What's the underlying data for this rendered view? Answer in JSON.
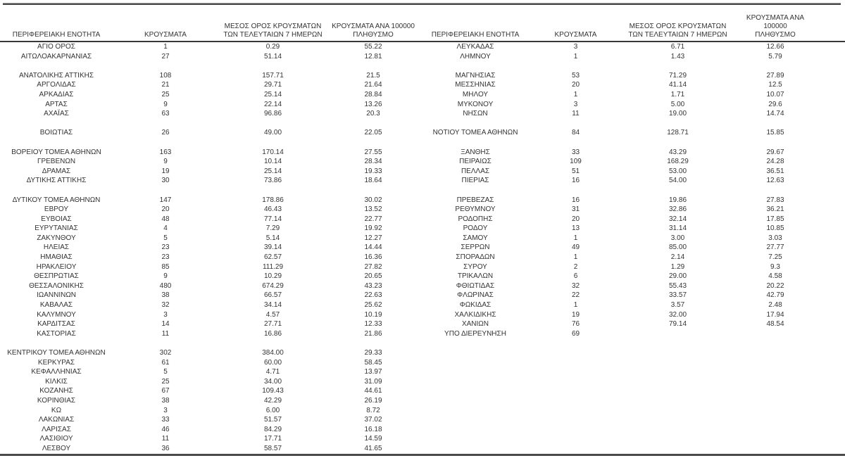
{
  "page": {
    "background": "#ffffff",
    "text_color": "#333333",
    "rule_color": "#4a4a4a"
  },
  "table": {
    "headers": {
      "region": "ΠΕΡΙΦΕΡΕΙΑΚΗ ΕΝΟΤΗΤΑ",
      "cases": "ΚΡΟΥΣΜΑΤΑ",
      "avg7": "ΜΕΣΟΣ ΟΡΟΣ ΚΡΟΥΣΜΑΤΩΝ\nΤΩΝ ΤΕΛΕΥΤΑΙΩΝ 7 ΗΜΕΡΩΝ",
      "per100k": "ΚΡΟΥΣΜΑΤΑ ΑΝΑ 100000\nΠΛΗΘΥΣΜΟ"
    },
    "rows": [
      [
        "ΑΓΙΟ ΟΡΟΣ",
        "1",
        "0.29",
        "55.22",
        "ΛΕΥΚΑΔΑΣ",
        "3",
        "6.71",
        "12.66"
      ],
      [
        "ΑΙΤΩΛΟΑΚΑΡΝΑΝΙΑΣ",
        "27",
        "51.14",
        "12.81",
        "ΛΗΜΝΟΥ",
        "1",
        "1.43",
        "5.79"
      ],
      [
        "",
        "",
        "",
        "",
        "",
        "",
        "",
        ""
      ],
      [
        "ΑΝΑΤΟΛΙΚΗΣ ΑΤΤΙΚΗΣ",
        "108",
        "157.71",
        "21.5",
        "ΜΑΓΝΗΣΙΑΣ",
        "53",
        "71.29",
        "27.89"
      ],
      [
        "ΑΡΓΟΛΙΔΑΣ",
        "21",
        "29.71",
        "21.64",
        "ΜΕΣΣΗΝΙΑΣ",
        "20",
        "41.14",
        "12.5"
      ],
      [
        "ΑΡΚΑΔΙΑΣ",
        "25",
        "25.14",
        "28.84",
        "ΜΗΛΟΥ",
        "1",
        "1.71",
        "10.07"
      ],
      [
        "ΑΡΤΑΣ",
        "9",
        "22.14",
        "13.26",
        "ΜΥΚΟΝΟΥ",
        "3",
        "5.00",
        "29.6"
      ],
      [
        "ΑΧΑΪΑΣ",
        "63",
        "96.86",
        "20.3",
        "ΝΗΣΩΝ",
        "11",
        "19.00",
        "14.74"
      ],
      [
        "",
        "",
        "",
        "",
        "",
        "",
        "",
        ""
      ],
      [
        "ΒΟΙΩΤΙΑΣ",
        "26",
        "49.00",
        "22.05",
        "ΝΟΤΙΟΥ ΤΟΜΕΑ ΑΘΗΝΩΝ",
        "84",
        "128.71",
        "15.85"
      ],
      [
        "",
        "",
        "",
        "",
        "",
        "",
        "",
        ""
      ],
      [
        "ΒΟΡΕΙΟΥ ΤΟΜΕΑ ΑΘΗΝΩΝ",
        "163",
        "170.14",
        "27.55",
        "ΞΑΝΘΗΣ",
        "33",
        "43.29",
        "29.67"
      ],
      [
        "ΓΡΕΒΕΝΩΝ",
        "9",
        "10.14",
        "28.34",
        "ΠΕΙΡΑΙΩΣ",
        "109",
        "168.29",
        "24.28"
      ],
      [
        "ΔΡΑΜΑΣ",
        "19",
        "25.14",
        "19.33",
        "ΠΕΛΛΑΣ",
        "51",
        "53.00",
        "36.51"
      ],
      [
        "ΔΥΤΙΚΗΣ ΑΤΤΙΚΗΣ",
        "30",
        "73.86",
        "18.64",
        "ΠΙΕΡΙΑΣ",
        "16",
        "54.00",
        "12.63"
      ],
      [
        "",
        "",
        "",
        "",
        "",
        "",
        "",
        ""
      ],
      [
        "ΔΥΤΙΚΟΥ ΤΟΜΕΑ ΑΘΗΝΩΝ",
        "147",
        "178.86",
        "30.02",
        "ΠΡΕΒΕΖΑΣ",
        "16",
        "19.86",
        "27.83"
      ],
      [
        "ΕΒΡΟΥ",
        "20",
        "46.43",
        "13.52",
        "ΡΕΘΥΜΝΟΥ",
        "31",
        "32.86",
        "36.21"
      ],
      [
        "ΕΥΒΟΙΑΣ",
        "48",
        "77.14",
        "22.77",
        "ΡΟΔΟΠΗΣ",
        "20",
        "32.14",
        "17.85"
      ],
      [
        "ΕΥΡΥΤΑΝΙΑΣ",
        "4",
        "7.29",
        "19.92",
        "ΡΟΔΟΥ",
        "13",
        "31.14",
        "10.85"
      ],
      [
        "ΖΑΚΥΝΘΟΥ",
        "5",
        "5.14",
        "12.27",
        "ΣΑΜΟΥ",
        "1",
        "3.00",
        "3.03"
      ],
      [
        "ΗΛΕΙΑΣ",
        "23",
        "39.14",
        "14.44",
        "ΣΕΡΡΩΝ",
        "49",
        "85.00",
        "27.77"
      ],
      [
        "ΗΜΑΘΙΑΣ",
        "23",
        "62.57",
        "16.36",
        "ΣΠΟΡΑΔΩΝ",
        "1",
        "2.14",
        "7.25"
      ],
      [
        "ΗΡΑΚΛΕΙΟΥ",
        "85",
        "111.29",
        "27.82",
        "ΣΥΡΟΥ",
        "2",
        "1.29",
        "9.3"
      ],
      [
        "ΘΕΣΠΡΩΤΙΑΣ",
        "9",
        "10.29",
        "20.65",
        "ΤΡΙΚΑΛΩΝ",
        "6",
        "29.00",
        "4.58"
      ],
      [
        "ΘΕΣΣΑΛΟΝΙΚΗΣ",
        "480",
        "674.29",
        "43.23",
        "ΦΘΙΩΤΙΔΑΣ",
        "32",
        "55.43",
        "20.22"
      ],
      [
        "ΙΩΑΝΝΙΝΩΝ",
        "38",
        "66.57",
        "22.63",
        "ΦΛΩΡΙΝΑΣ",
        "22",
        "33.57",
        "42.79"
      ],
      [
        "ΚΑΒΑΛΑΣ",
        "32",
        "34.14",
        "25.62",
        "ΦΩΚΙΔΑΣ",
        "1",
        "3.57",
        "2.48"
      ],
      [
        "ΚΑΛΥΜΝΟΥ",
        "3",
        "4.57",
        "10.19",
        "ΧΑΛΚΙΔΙΚΗΣ",
        "19",
        "32.00",
        "17.94"
      ],
      [
        "ΚΑΡΔΙΤΣΑΣ",
        "14",
        "27.71",
        "12.33",
        "ΧΑΝΙΩΝ",
        "76",
        "79.14",
        "48.54"
      ],
      [
        "ΚΑΣΤΟΡΙΑΣ",
        "11",
        "16.86",
        "21.86",
        "ΥΠΟ ΔΙΕΡΕΥΝΗΣΗ",
        "69",
        "",
        ""
      ],
      [
        "",
        "",
        "",
        "",
        "",
        "",
        "",
        ""
      ],
      [
        "ΚΕΝΤΡΙΚΟΥ ΤΟΜΕΑ ΑΘΗΝΩΝ",
        "302",
        "384.00",
        "29.33",
        "",
        "",
        "",
        ""
      ],
      [
        "ΚΕΡΚΥΡΑΣ",
        "61",
        "60.00",
        "58.45",
        "",
        "",
        "",
        ""
      ],
      [
        "ΚΕΦΑΛΛΗΝΙΑΣ",
        "5",
        "4.71",
        "13.97",
        "",
        "",
        "",
        ""
      ],
      [
        "ΚΙΛΚΙΣ",
        "25",
        "34.00",
        "31.09",
        "",
        "",
        "",
        ""
      ],
      [
        "ΚΟΖΑΝΗΣ",
        "67",
        "109.43",
        "44.61",
        "",
        "",
        "",
        ""
      ],
      [
        "ΚΟΡΙΝΘΙΑΣ",
        "38",
        "42.29",
        "26.19",
        "",
        "",
        "",
        ""
      ],
      [
        "ΚΩ",
        "3",
        "6.00",
        "8.72",
        "",
        "",
        "",
        ""
      ],
      [
        "ΛΑΚΩΝΙΑΣ",
        "33",
        "51.57",
        "37.02",
        "",
        "",
        "",
        ""
      ],
      [
        "ΛΑΡΙΣΑΣ",
        "46",
        "84.29",
        "16.18",
        "",
        "",
        "",
        ""
      ],
      [
        "ΛΑΣΙΘΙΟΥ",
        "11",
        "17.71",
        "14.59",
        "",
        "",
        "",
        ""
      ],
      [
        "ΛΕΣΒΟΥ",
        "36",
        "58.57",
        "41.65",
        "",
        "",
        "",
        ""
      ]
    ]
  }
}
